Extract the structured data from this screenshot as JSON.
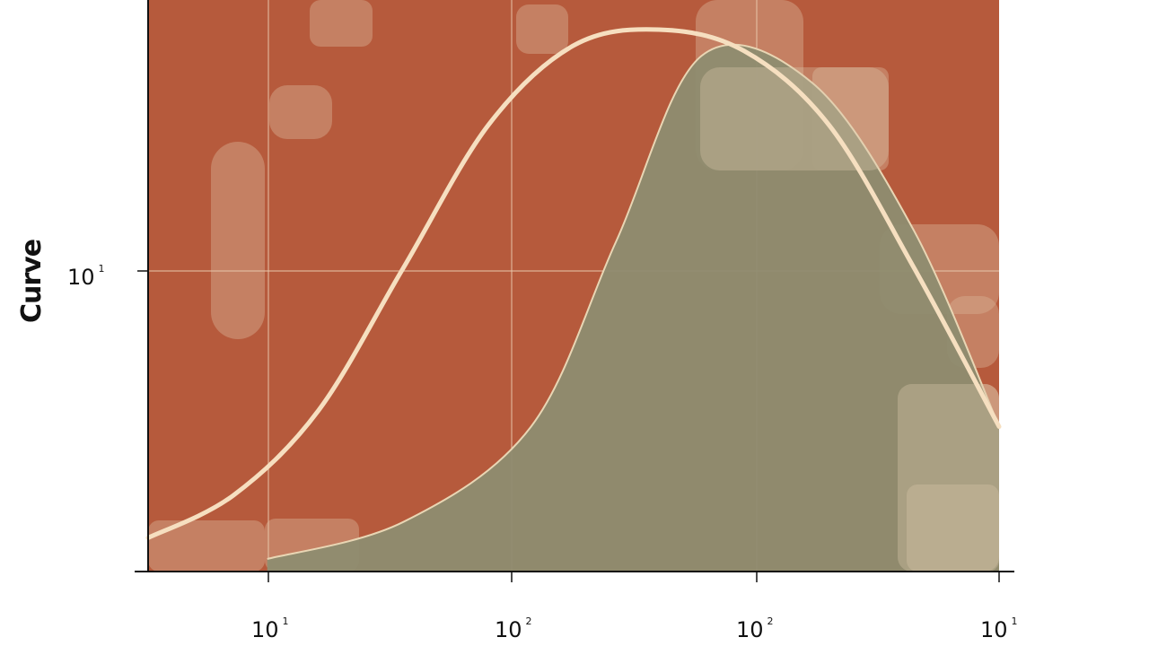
{
  "chart_data": {
    "type": "area",
    "ylabel": "Curve",
    "x_scale": "log",
    "y_scale": "log",
    "x_ticks": [
      {
        "base": "10",
        "exp": "1"
      },
      {
        "base": "10",
        "exp": "2"
      },
      {
        "base": "10",
        "exp": "2"
      },
      {
        "base": "10",
        "exp": "1"
      }
    ],
    "y_ticks": [
      {
        "base": "10",
        "exp": "1"
      }
    ],
    "grid": true,
    "series": [
      {
        "kind": "line",
        "color": "#f6dfc0",
        "points": [
          [
            0,
            0.04
          ],
          [
            0.1,
            0.12
          ],
          [
            0.2,
            0.28
          ],
          [
            0.3,
            0.55
          ],
          [
            0.4,
            0.82
          ],
          [
            0.5,
            0.97
          ],
          [
            0.6,
            1.0
          ],
          [
            0.7,
            0.96
          ],
          [
            0.8,
            0.82
          ],
          [
            0.9,
            0.55
          ],
          [
            1.0,
            0.25
          ]
        ]
      },
      {
        "kind": "area",
        "color": "#8f8d6f",
        "points": [
          [
            0.14,
            0.0
          ],
          [
            0.3,
            0.07
          ],
          [
            0.45,
            0.25
          ],
          [
            0.55,
            0.6
          ],
          [
            0.65,
            0.95
          ],
          [
            0.78,
            0.9
          ],
          [
            0.9,
            0.62
          ],
          [
            1.0,
            0.25
          ]
        ]
      }
    ],
    "colors": {
      "background": "#b65a3c",
      "overlay": "#d8b092",
      "grid": "#e8c9ad",
      "axis": "#111111"
    }
  }
}
